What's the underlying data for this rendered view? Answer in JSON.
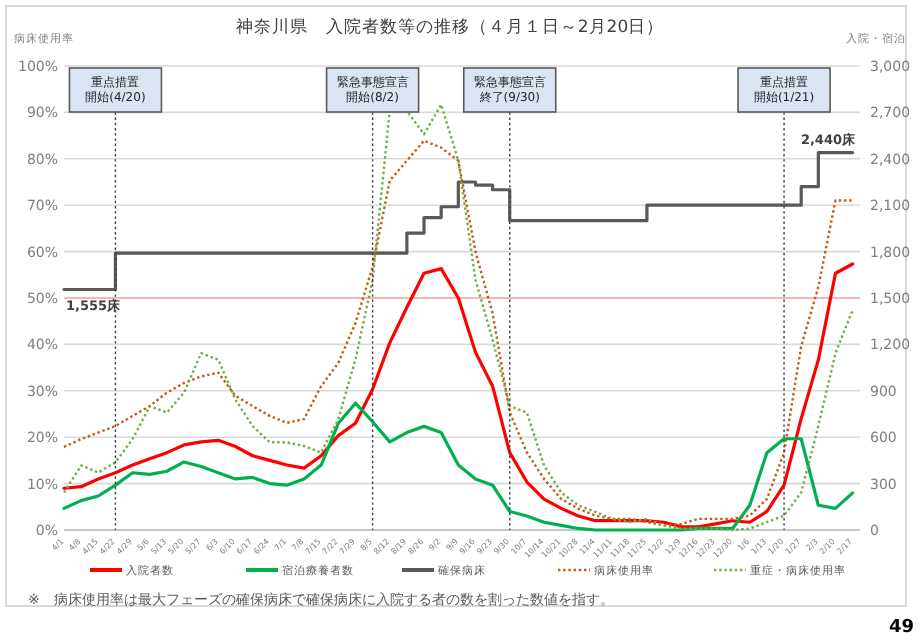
{
  "chart_data": {
    "type": "line",
    "title": "神奈川県　入院者数等の推移（４月１日～2月20日）",
    "ylabel": "病床使用率",
    "y2label": "入院・宿泊",
    "categories": [
      "4/1",
      "4/8",
      "4/15",
      "4/22",
      "4/29",
      "5/6",
      "5/13",
      "5/20",
      "5/27",
      "6/3",
      "6/10",
      "6/17",
      "6/24",
      "7/1",
      "7/8",
      "7/15",
      "7/22",
      "7/29",
      "8/5",
      "8/12",
      "8/19",
      "8/26",
      "9/2",
      "9/9",
      "9/16",
      "9/23",
      "9/30",
      "10/7",
      "10/14",
      "10/21",
      "10/28",
      "11/4",
      "11/11",
      "11/18",
      "11/25",
      "12/2",
      "12/9",
      "12/16",
      "12/23",
      "12/30",
      "1/6",
      "1/13",
      "1/20",
      "1/27",
      "2/3",
      "2/10",
      "2/17"
    ],
    "ylim": [
      0,
      100
    ],
    "yticks": [
      {
        "value": 0,
        "label": "0%"
      },
      {
        "value": 10,
        "label": "10%"
      },
      {
        "value": 20,
        "label": "20%"
      },
      {
        "value": 30,
        "label": "30%"
      },
      {
        "value": 40,
        "label": "40%"
      },
      {
        "value": 50,
        "label": "50%"
      },
      {
        "value": 60,
        "label": "60%"
      },
      {
        "value": 70,
        "label": "70%"
      },
      {
        "value": 80,
        "label": "80%"
      },
      {
        "value": 90,
        "label": "90%"
      },
      {
        "value": 100,
        "label": "100%"
      }
    ],
    "y2lim": [
      0,
      3000
    ],
    "y2ticks": [
      {
        "value": 0,
        "label": "0"
      },
      {
        "value": 300,
        "label": "300"
      },
      {
        "value": 600,
        "label": "600"
      },
      {
        "value": 900,
        "label": "900"
      },
      {
        "value": 1200,
        "label": "1,200"
      },
      {
        "value": 1500,
        "label": "1,500"
      },
      {
        "value": 1800,
        "label": "1,800"
      },
      {
        "value": 2100,
        "label": "2,100"
      },
      {
        "value": 2400,
        "label": "2,400"
      },
      {
        "value": 2700,
        "label": "2,700"
      },
      {
        "value": 3000,
        "label": "3,000"
      }
    ],
    "grid": "y",
    "legend": "bottom",
    "marker": "none",
    "series": [
      {
        "name": "入院者数",
        "color": "#ff0000",
        "axis": "y2",
        "values": [
          270,
          280,
          330,
          370,
          420,
          460,
          500,
          550,
          570,
          580,
          540,
          480,
          450,
          420,
          400,
          480,
          610,
          690,
          910,
          1210,
          1440,
          1660,
          1690,
          1500,
          1150,
          930,
          500,
          310,
          200,
          140,
          90,
          60,
          60,
          60,
          60,
          50,
          20,
          20,
          40,
          60,
          50,
          120,
          290,
          720,
          1100,
          1660,
          1720
        ]
      },
      {
        "name": "宿泊療養者数",
        "color": "#00b050",
        "axis": "y2",
        "values": [
          140,
          190,
          220,
          290,
          370,
          360,
          380,
          440,
          410,
          370,
          330,
          340,
          300,
          290,
          330,
          420,
          690,
          820,
          700,
          570,
          630,
          670,
          630,
          420,
          330,
          290,
          120,
          90,
          50,
          30,
          10,
          0,
          0,
          0,
          0,
          0,
          0,
          10,
          10,
          10,
          160,
          500,
          590,
          590,
          160,
          140,
          240
        ]
      },
      {
        "name": "確保病床",
        "color": "#595959",
        "axis": "y2",
        "type": "step",
        "values": [
          1555,
          1555,
          1555,
          1790,
          1790,
          1790,
          1790,
          1790,
          1790,
          1790,
          1790,
          1790,
          1790,
          1790,
          1790,
          1790,
          1790,
          1790,
          1790,
          1790,
          1920,
          2020,
          2090,
          2250,
          2230,
          2200,
          2000,
          2000,
          2000,
          2000,
          2000,
          2000,
          2000,
          2000,
          2100,
          2100,
          2100,
          2100,
          2100,
          2100,
          2100,
          2100,
          2100,
          2220,
          2440,
          2440,
          2440
        ]
      },
      {
        "name": "病床使用率",
        "color": "#c55a11",
        "line_style": "dotted",
        "values": [
          17.9,
          19.6,
          21,
          22.4,
          24.6,
          26.7,
          29.6,
          31.7,
          33.1,
          33.9,
          28.9,
          26.7,
          24.6,
          23.1,
          23.9,
          31,
          36,
          44.6,
          56.7,
          75.3,
          79.6,
          83.9,
          82.4,
          79.6,
          60,
          46.7,
          25.3,
          16.7,
          11,
          6.7,
          4.6,
          3.1,
          2.4,
          2.4,
          1.7,
          1,
          1.3,
          2.4,
          2.4,
          2.4,
          3.1,
          6.7,
          16.7,
          39.6,
          52.4,
          71,
          71
        ]
      },
      {
        "name": "重症・病床使用率",
        "color": "#70ad47",
        "line_style": "dotted",
        "values": [
          8.1,
          13.9,
          12.4,
          14.6,
          19.6,
          26.7,
          25.3,
          29.6,
          38.1,
          36.7,
          28.1,
          22.4,
          18.9,
          18.9,
          18.1,
          16.7,
          23.9,
          36.7,
          53.9,
          90.3,
          90.3,
          85.3,
          91.7,
          79.6,
          53.9,
          41,
          26.7,
          25.3,
          13.9,
          8.1,
          5.3,
          3.9,
          2.4,
          1.7,
          2.4,
          1,
          0.3,
          0.3,
          0.3,
          0,
          0.3,
          1.7,
          3.1,
          8.1,
          22.4,
          38.1,
          47.4
        ]
      }
    ],
    "ref_lines": [
      {
        "axis": "y",
        "value": 50,
        "color": "#f4b6b6",
        "line_style": "solid"
      },
      {
        "axis": "x",
        "value": "4/22",
        "label": "重点措置開始(4/20)",
        "line_style": "dotted",
        "color": "#404040"
      },
      {
        "axis": "x",
        "value": "8/5",
        "label": "緊急事態宣言開始(8/2)",
        "line_style": "dotted",
        "color": "#404040"
      },
      {
        "axis": "x",
        "value": "9/30",
        "label": "緊急事態宣言終了(9/30)",
        "line_style": "dotted",
        "color": "#404040"
      },
      {
        "axis": "x",
        "value": "1/20",
        "label": "重点措置開始(1/21)",
        "line_style": "dotted",
        "color": "#404040"
      }
    ],
    "annotations": [
      "1,555床",
      "2,440床",
      "※　病床使用率は最大フェーズの確保病床で確保病床に入院する者の数を割った数値を指す。",
      "49"
    ]
  }
}
